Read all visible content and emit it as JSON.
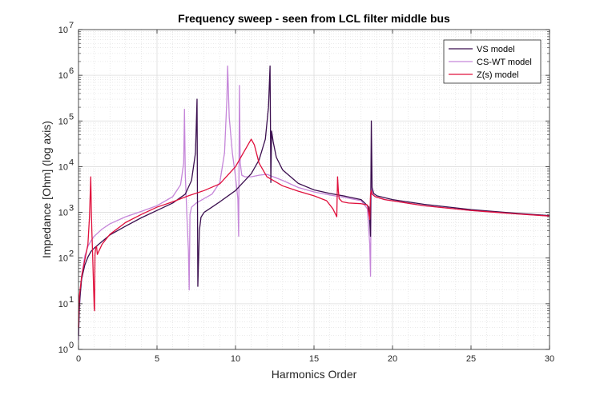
{
  "chart_data": {
    "type": "line",
    "title": "Frequency sweep - seen from LCL filter middle bus",
    "xlabel": "Harmonics Order",
    "ylabel": "Impedance [Ohm] (log axis)",
    "xlim": [
      0,
      30
    ],
    "ylim": [
      1,
      10000000
    ],
    "yscale": "log",
    "grid": "major and minor",
    "legend_position": "top-right",
    "x_ticks": [
      "0",
      "5",
      "10",
      "15",
      "20",
      "25",
      "30"
    ],
    "y_ticks": [
      {
        "base": "10",
        "exp": "0"
      },
      {
        "base": "10",
        "exp": "1"
      },
      {
        "base": "10",
        "exp": "2"
      },
      {
        "base": "10",
        "exp": "3"
      },
      {
        "base": "10",
        "exp": "4"
      },
      {
        "base": "10",
        "exp": "5"
      },
      {
        "base": "10",
        "exp": "6"
      },
      {
        "base": "10",
        "exp": "7"
      }
    ],
    "series": [
      {
        "name": "VS model",
        "color": "#3b0f4f",
        "x": [
          0.0,
          0.05,
          0.1,
          0.2,
          0.4,
          0.6,
          0.8,
          1.0,
          1.5,
          2.0,
          3.0,
          4.0,
          5.0,
          6.0,
          6.8,
          7.2,
          7.45,
          7.55,
          7.6,
          7.65,
          7.7,
          7.8,
          8.0,
          8.5,
          9.0,
          10.0,
          11.0,
          11.5,
          11.9,
          12.1,
          12.2,
          12.25,
          12.3,
          12.4,
          12.6,
          13.0,
          14.0,
          15.0,
          16.0,
          17.0,
          18.0,
          18.5,
          18.6,
          18.65,
          18.7,
          18.8,
          19.0,
          20.0,
          22.0,
          25.0,
          28.0,
          30.0
        ],
        "y": [
          2,
          8,
          15,
          35,
          70,
          105,
          140,
          165,
          230,
          320,
          500,
          760,
          1100,
          1600,
          2500,
          5000,
          20000,
          300000,
          24,
          100,
          400,
          780,
          1000,
          1300,
          1700,
          3000,
          7000,
          14000,
          40000,
          200000,
          1600000,
          4500,
          60000,
          35000,
          16000,
          8500,
          4300,
          3100,
          2600,
          2250,
          1900,
          1300,
          300,
          100000,
          3500,
          2600,
          2300,
          1900,
          1500,
          1150,
          950,
          850
        ]
      },
      {
        "name": "CS-WT model",
        "color": "#c586d9",
        "x": [
          0.0,
          0.05,
          0.1,
          0.2,
          0.4,
          0.6,
          0.8,
          1.0,
          1.5,
          2.0,
          3.0,
          4.0,
          5.0,
          6.0,
          6.5,
          6.7,
          6.75,
          6.8,
          6.9,
          7.0,
          7.05,
          7.1,
          7.2,
          7.5,
          8.0,
          8.5,
          9.0,
          9.3,
          9.45,
          9.5,
          9.6,
          9.8,
          10.0,
          10.15,
          10.2,
          10.25,
          10.3,
          10.4,
          10.6,
          11.0,
          11.5,
          12.0,
          13.0,
          14.0,
          15.0,
          16.0,
          17.0,
          18.0,
          18.4,
          18.55,
          18.6,
          18.65,
          18.7,
          18.9,
          19.5,
          22.0,
          25.0,
          28.0,
          30.0
        ],
        "y": [
          1.6,
          6,
          13,
          40,
          110,
          180,
          240,
          300,
          430,
          560,
          800,
          1050,
          1400,
          2200,
          4000,
          12000,
          180000,
          7000,
          900,
          150,
          20,
          900,
          1300,
          1600,
          2000,
          2500,
          4500,
          20000,
          300000,
          1600000,
          120000,
          20000,
          6000,
          2000,
          300,
          600000,
          12000,
          6500,
          6000,
          6000,
          6500,
          6800,
          5000,
          3500,
          2800,
          2400,
          2100,
          1800,
          1200,
          200,
          40,
          20000,
          2600,
          2200,
          1900,
          1400,
          1100,
          920,
          830
        ]
      },
      {
        "name": "Z(s) model",
        "color": "#e0103c",
        "x": [
          0.0,
          0.05,
          0.1,
          0.2,
          0.4,
          0.6,
          0.7,
          0.78,
          0.82,
          0.85,
          0.9,
          1.0,
          1.02,
          1.05,
          1.1,
          1.15,
          1.2,
          1.5,
          2.0,
          3.0,
          4.0,
          5.0,
          6.0,
          7.0,
          8.0,
          9.0,
          10.0,
          10.5,
          11.0,
          11.2,
          11.5,
          12.0,
          13.0,
          14.0,
          15.0,
          15.8,
          16.2,
          16.45,
          16.5,
          16.55,
          16.6,
          16.8,
          17.2,
          18.0,
          18.4,
          18.55,
          18.6,
          18.65,
          18.7,
          18.9,
          19.5,
          22.0,
          25.0,
          28.0,
          30.0
        ],
        "y": [
          3,
          14,
          20,
          40,
          90,
          200,
          800,
          6000,
          1000,
          400,
          120,
          8,
          7,
          120,
          170,
          180,
          120,
          200,
          330,
          600,
          900,
          1300,
          1700,
          2300,
          3000,
          4200,
          10000,
          20000,
          40000,
          30000,
          12000,
          6000,
          3800,
          2900,
          2300,
          1800,
          1200,
          800,
          6000,
          3000,
          2000,
          1700,
          1600,
          1550,
          1450,
          700,
          2500,
          3000,
          2500,
          2200,
          1900,
          1400,
          1100,
          920,
          830
        ]
      }
    ]
  }
}
